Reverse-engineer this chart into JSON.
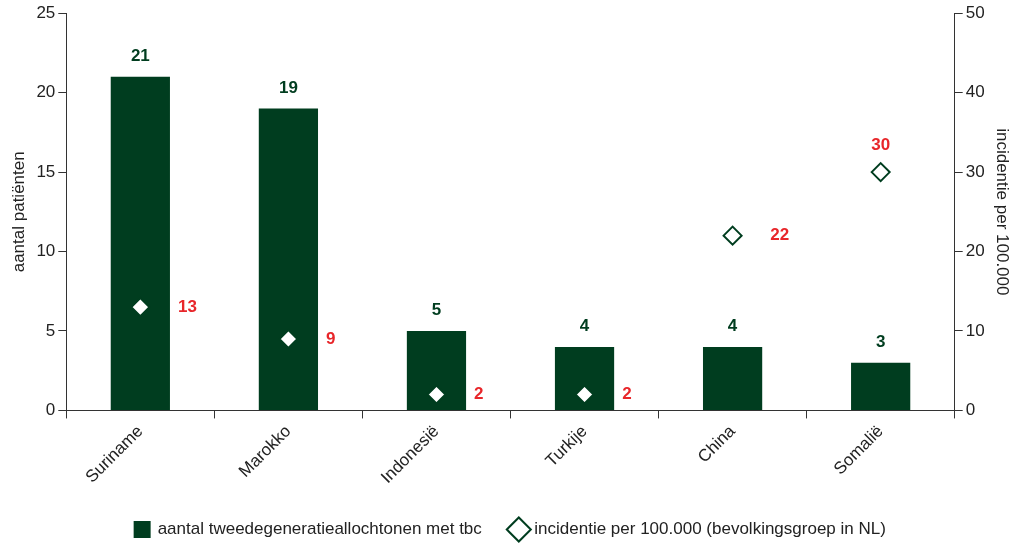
{
  "chart_data": {
    "type": "bar",
    "categories": [
      "Suriname",
      "Marokko",
      "Indonesië",
      "Turkije",
      "China",
      "Somalië"
    ],
    "ylabel": "aantal patiënten",
    "y2label": "incidentie per 100.000",
    "ylim": [
      0,
      25
    ],
    "yticks": [
      0,
      5,
      10,
      15,
      20,
      25
    ],
    "y2lim": [
      0,
      50
    ],
    "y2ticks": [
      0,
      10,
      20,
      30,
      40,
      50
    ],
    "grid": false,
    "legend": "bottom",
    "data_labels": true,
    "series": [
      {
        "name": "aantal tweedegeneratieallochtonen met tbc",
        "color": "#003d1f",
        "values": [
          21,
          19,
          5,
          4,
          4,
          3
        ]
      },
      {
        "name": "incidentie per 100.000 (bevolkingsgroep in NL)",
        "type": "scatter",
        "axis": "y2",
        "marker": "diamond",
        "color": "#003d1f",
        "values": [
          13,
          9,
          2,
          2,
          22,
          30
        ]
      }
    ]
  }
}
